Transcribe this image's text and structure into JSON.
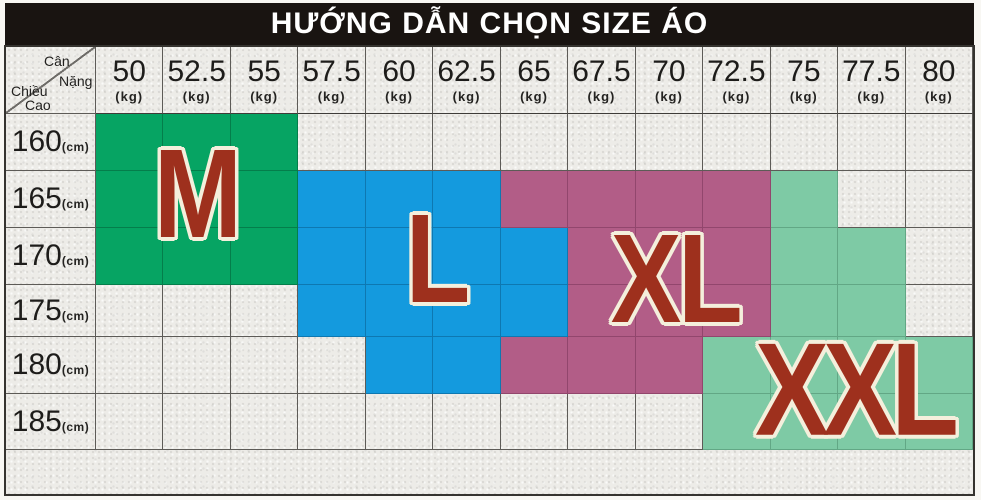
{
  "title": "HƯỚNG DẪN CHỌN SIZE ÁO",
  "corner": {
    "top_axis_word1": "Cân",
    "top_axis_word2": "Nặng",
    "bottom_axis_word1": "Chiều",
    "bottom_axis_word2": "Cao"
  },
  "columns": {
    "unit": "(kg)",
    "values": [
      "50",
      "52.5",
      "55",
      "57.5",
      "60",
      "62.5",
      "65",
      "67.5",
      "70",
      "72.5",
      "75",
      "77.5",
      "80"
    ]
  },
  "rows": {
    "unit": "(cm)",
    "values": [
      "160",
      "165",
      "170",
      "175",
      "180",
      "185"
    ]
  },
  "sizes": [
    {
      "code": "M",
      "color": "#06a463"
    },
    {
      "code": "L",
      "color": "#149ade"
    },
    {
      "code": "XL",
      "color": "#b25d87"
    },
    {
      "code": "XXL",
      "color": "#7ecaa5"
    }
  ],
  "letter_style": {
    "fill": "#9e301d",
    "outline": "#f4efdc"
  },
  "chart_data": {
    "type": "heatmap",
    "title": "HƯỚNG DẪN CHỌN SIZE ÁO",
    "x_label": "Cân Nặng",
    "x_unit": "kg",
    "x": [
      50,
      52.5,
      55,
      57.5,
      60,
      62.5,
      65,
      67.5,
      70,
      72.5,
      75,
      77.5,
      80
    ],
    "y_label": "Chiều Cao",
    "y_unit": "cm",
    "y": [
      160,
      165,
      170,
      175,
      180,
      185
    ],
    "legend": [
      {
        "size": "M",
        "color": "#06a463"
      },
      {
        "size": "L",
        "color": "#149ade"
      },
      {
        "size": "XL",
        "color": "#b25d87"
      },
      {
        "size": "XXL",
        "color": "#7ecaa5"
      }
    ],
    "size_map": [
      [
        "M",
        "M",
        "M",
        "",
        "",
        "",
        "",
        "",
        "",
        "",
        "",
        "",
        ""
      ],
      [
        "M",
        "M",
        "M",
        "L",
        "L",
        "L",
        "XL",
        "XL",
        "XL",
        "XL",
        "XXL",
        "",
        ""
      ],
      [
        "M",
        "M",
        "M",
        "L",
        "L",
        "L",
        "L",
        "XL",
        "XL",
        "XL",
        "XXL",
        "XXL",
        ""
      ],
      [
        "",
        "",
        "",
        "L",
        "L",
        "L",
        "L",
        "XL",
        "XL",
        "XL",
        "XXL",
        "XXL",
        ""
      ],
      [
        "",
        "",
        "",
        "",
        "L",
        "L",
        "XL",
        "XL",
        "XL",
        "XXL",
        "XXL",
        "XXL",
        "XXL"
      ],
      [
        "",
        "",
        "",
        "",
        "",
        "",
        "",
        "",
        "",
        "XXL",
        "XXL",
        "XXL",
        "XXL"
      ]
    ]
  }
}
